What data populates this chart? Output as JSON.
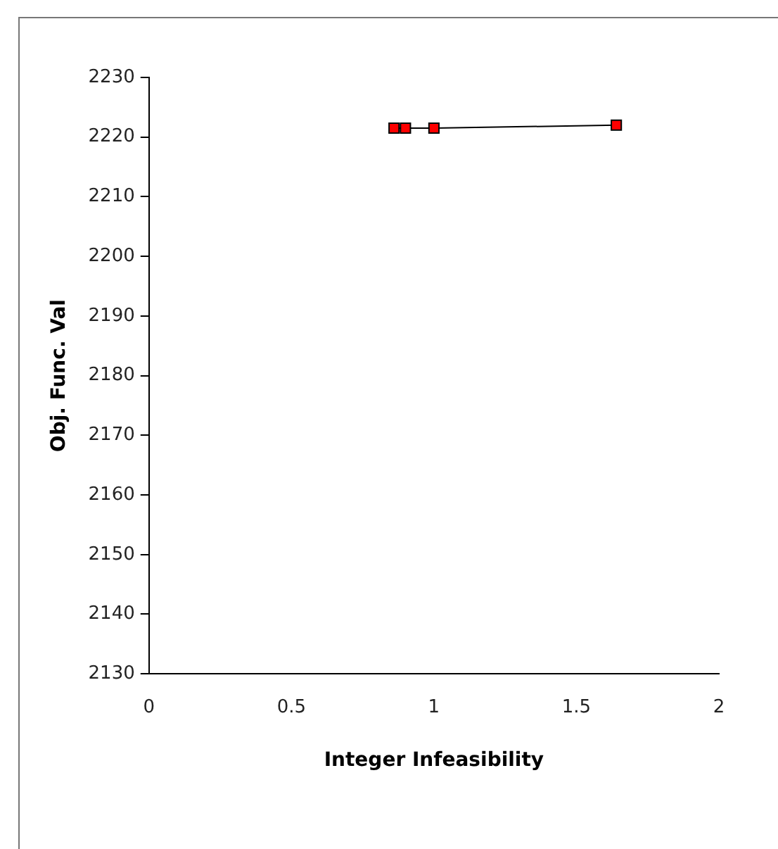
{
  "chart_data": {
    "type": "line",
    "xlabel": "Integer Infeasibility",
    "ylabel": "Obj. Func. Val",
    "x": [
      1.64,
      1.0,
      0.9,
      0.87,
      0.86
    ],
    "series": [
      {
        "color": "#ff0000",
        "values": [
          2222,
          2221.5,
          2221.5,
          null,
          2221.5
        ]
      }
    ],
    "xlim": [
      0,
      2
    ],
    "xticks": [
      0,
      0.5,
      1,
      1.5,
      2
    ],
    "ylim": [
      2130,
      2230
    ],
    "yticks": [
      2130,
      2140,
      2150,
      2160,
      2170,
      2180,
      2190,
      2200,
      2210,
      2220,
      2230
    ],
    "grid": false,
    "legend": false,
    "marker": "square",
    "line_style": "solid"
  }
}
